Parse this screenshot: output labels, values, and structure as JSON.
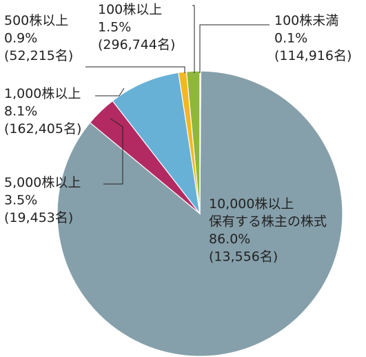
{
  "chart_data": {
    "type": "pie",
    "title": "",
    "slices": [
      {
        "name": "10,000株以上保有する株主の株式",
        "value": 86.0,
        "color": "#86a0ab",
        "lines": [
          "10,000株以上",
          "保有する株主の株式",
          "86.0%",
          "(13,556名)"
        ]
      },
      {
        "name": "5,000株以上",
        "value": 3.5,
        "color": "#b32a62",
        "lines": [
          "5,000株以上",
          "3.5%",
          "(19,453名)"
        ]
      },
      {
        "name": "1,000株以上",
        "value": 8.1,
        "color": "#67b1d6",
        "lines": [
          "1,000株以上",
          "8.1%",
          "(162,405名)"
        ]
      },
      {
        "name": "500株以上",
        "value": 0.9,
        "color": "#f4b724",
        "lines": [
          "500株以上",
          "0.9%",
          "(52,215名)"
        ]
      },
      {
        "name": "100株以上",
        "value": 1.5,
        "color": "#8fb83a",
        "lines": [
          "100株以上",
          "1.5%",
          "(296,744名)"
        ]
      },
      {
        "name": "100株未満",
        "value": 0.1,
        "color": "#e8c9a0",
        "lines": [
          "100株未満",
          "0.1%",
          "(114,916名)"
        ]
      }
    ]
  }
}
